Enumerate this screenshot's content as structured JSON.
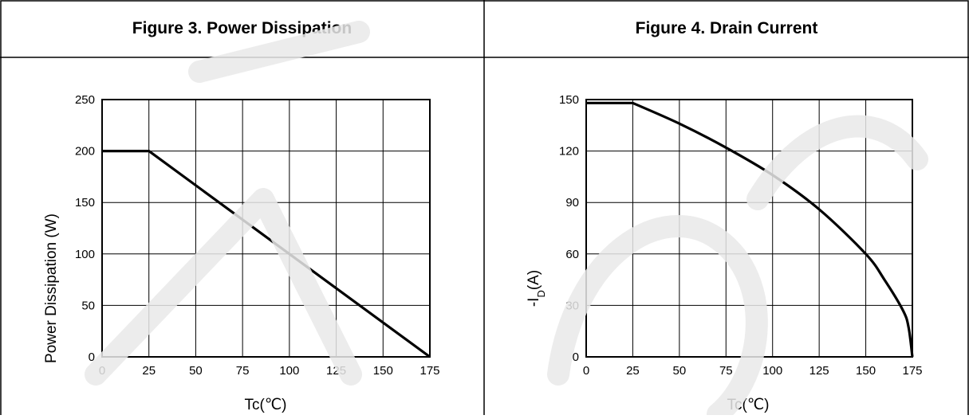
{
  "figures": [
    {
      "title": "Figure 3. Power Dissipation"
    },
    {
      "title": "Figure 4. Drain Current"
    }
  ],
  "chart_data": [
    {
      "type": "line",
      "title": "Figure 3. Power Dissipation",
      "xlabel": "Tc(℃)",
      "ylabel": "Power Dissipation (W)",
      "xlim": [
        0,
        175
      ],
      "ylim": [
        0,
        250
      ],
      "xticks": [
        "0",
        "25",
        "50",
        "75",
        "100",
        "125",
        "150",
        "175"
      ],
      "yticks": [
        "0",
        "50",
        "100",
        "150",
        "200",
        "250"
      ],
      "grid": true,
      "series": [
        {
          "x": [
            0,
            25,
            175
          ],
          "y": [
            200,
            200,
            0
          ]
        }
      ]
    },
    {
      "type": "line",
      "title": "Figure 4. Drain Current",
      "xlabel": "Tc(℃)",
      "ylabel": "-I_D(A)",
      "xlim": [
        0,
        175
      ],
      "ylim": [
        0,
        150
      ],
      "xticks": [
        "0",
        "25",
        "50",
        "75",
        "100",
        "125",
        "150",
        "175"
      ],
      "yticks": [
        "0",
        "30",
        "60",
        "90",
        "120",
        "150"
      ],
      "grid": true,
      "series": [
        {
          "x": [
            0,
            25,
            50,
            75,
            100,
            125,
            150,
            160,
            170,
            173,
            175
          ],
          "y": [
            148,
            148,
            136,
            122,
            106,
            86,
            60,
            45,
            27,
            17,
            0
          ]
        }
      ]
    }
  ]
}
